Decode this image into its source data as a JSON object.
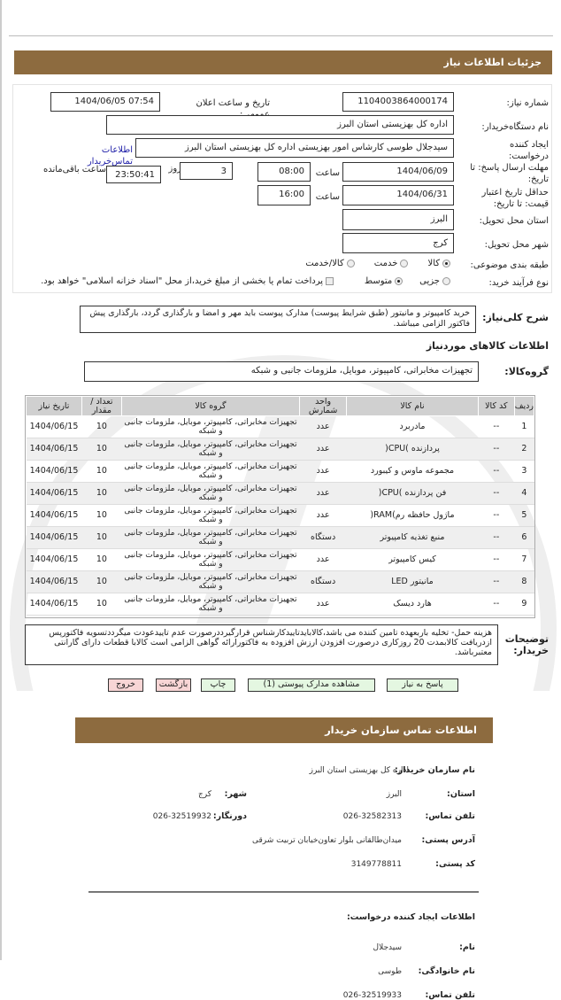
{
  "header": {
    "title": "جزئیات اطلاعات نیاز"
  },
  "form": {
    "need_number_label": "شماره نیاز:",
    "need_number": "1104003864000174",
    "announce_label": "تاریخ و ساعت اعلان عمومی:",
    "announce_value": "1404/06/05 07:54",
    "buyer_org_label": "نام دستگاه‌خریدار:",
    "buyer_org": "اداره کل بهزیستی استان البرز",
    "creator_label": "ایجاد کننده درخواست:",
    "creator": "سیدجلال طوسی کارشاس امور بهزیستی اداره کل بهزیستی استان البرز",
    "contact_link": "اطلاعات تماس‌خریدار",
    "deadline_label": "مهلت ارسال پاسخ: تا تاریخ:",
    "deadline_date": "1404/06/09",
    "time_label": "ساعت",
    "deadline_time": "08:00",
    "days_value": "3",
    "days_label": "روز",
    "remaining_time": "23:50:41",
    "remaining_label": "ساعت باقی‌مانده",
    "validity_label": "حداقل تاریخ اعتبار قیمت: تا تاریخ:",
    "validity_date": "1404/06/31",
    "validity_time": "16:00",
    "province_label": "استان محل تحویل:",
    "province": "البرز",
    "city_label": "شهر محل تحویل:",
    "city": "کرج",
    "category_label": "طبقه بندی موضوعی:",
    "category_options": [
      "کالا",
      "خدمت",
      "کالا/خدمت"
    ],
    "category_selected": "کالا",
    "process_label": "نوع فرآیند خرید:",
    "process_options": [
      "جزیی",
      "متوسط"
    ],
    "process_selected": "متوسط",
    "treasury_note": "پرداخت تمام یا بخشی از مبلغ خرید،از محل \"اسناد خزانه اسلامی\" خواهد بود.",
    "treasury_checked": false
  },
  "description": {
    "label": "شرح کلی‌نیاز:",
    "text": "خرید کامپیوتر و مانیتور (طبق شرایط پیوست) مدارک پیوست باید مهر و امضا و بارگذاری گردد، بارگذاری پیش فاکتور الزامی میباشد."
  },
  "goods": {
    "title": "اطلاعات کالاهای موردنیاز",
    "group_label": "گروه‌کالا:",
    "group": "تجهیزات مخابراتی، کامپیوتر، موبایل، ملزومات جانبی و شبکه"
  },
  "table": {
    "headers": [
      "ردیف",
      "کد کالا",
      "نام کالا",
      "واحد شمارش",
      "گروه کالا",
      "تعداد / مقدار",
      "تاریخ نیاز"
    ],
    "rows": [
      [
        "1",
        "--",
        "مادربرد",
        "عدد",
        "تجهیزات مخابراتی، کامپیوتر، موبایل، ملزومات جانبی و شبکه",
        "10",
        "1404/06/15"
      ],
      [
        "2",
        "--",
        "پردازنده )CPU(",
        "عدد",
        "تجهیزات مخابراتی، کامپیوتر، موبایل، ملزومات جانبی و شبکه",
        "10",
        "1404/06/15"
      ],
      [
        "3",
        "--",
        "مجموعه ماوس و کیبورد",
        "عدد",
        "تجهیزات مخابراتی، کامپیوتر، موبایل، ملزومات جانبی و شبکه",
        "10",
        "1404/06/15"
      ],
      [
        "4",
        "--",
        "فن پردازنده )CPU(",
        "عدد",
        "تجهیزات مخابراتی، کامپیوتر، موبایل، ملزومات جانبی و شبکه",
        "10",
        "1404/06/15"
      ],
      [
        "5",
        "--",
        "ماژول حافظه رم)RAM(",
        "عدد",
        "تجهیزات مخابراتی، کامپیوتر، موبایل، ملزومات جانبی و شبکه",
        "10",
        "1404/06/15"
      ],
      [
        "6",
        "--",
        "منبع تغذیه کامپیوتر",
        "دستگاه",
        "تجهیزات مخابراتی، کامپیوتر، موبایل، ملزومات جانبی و شبکه",
        "10",
        "1404/06/15"
      ],
      [
        "7",
        "--",
        "کیس کامپیوتر",
        "عدد",
        "تجهیزات مخابراتی، کامپیوتر، موبایل، ملزومات جانبی و شبکه",
        "10",
        "1404/06/15"
      ],
      [
        "8",
        "--",
        "مانیتور LED",
        "دستگاه",
        "تجهیزات مخابراتی، کامپیوتر، موبایل، ملزومات جانبی و شبکه",
        "10",
        "1404/06/15"
      ],
      [
        "9",
        "--",
        "هارد دیسک",
        "عدد",
        "تجهیزات مخابراتی، کامپیوتر، موبایل، ملزومات جانبی و شبکه",
        "10",
        "1404/06/15"
      ]
    ]
  },
  "notes": {
    "label": "توضیحات خریدار:",
    "text": "هزینه حمل- تخلیه باربعهده تامین کننده می باشد،کالاباید‌تاییدکارشناس قرارگیرددرصورت عدم تاییدعودت میگرددتسویه فاکتورپس ازدریافت کالابمدت 20 روزکاری درصورت افزودن ارزش افزوده به فاکتورارائه گواهی الزامی است کالابا قطعات دارای گارانتی معتبرباشد."
  },
  "buttons": {
    "reply": "پاسخ به نیاز",
    "attachments": "مشاهده مدارک پیوستی (1)",
    "print": "چاپ",
    "back": "بازگشت",
    "exit": "خروج"
  },
  "contact": {
    "title": "اطلاعات تماس سازمان خریدار",
    "org_label": "نام سازمان خریدار:",
    "org": "اداره کل بهزیستی استان البرز",
    "province_label": "استان:",
    "province": "البرز",
    "city_label": "شهر:",
    "city": "کرج",
    "phone_label": "تلفن تماس:",
    "phone": "026-32582313",
    "fax_label": "دورنگار:",
    "fax": "026-32519932",
    "address_label": "آدرس پستی:",
    "address": "میدان‌طالقانی بلوار تعاون‌خیابان تربیت شرقی",
    "postal_label": "کد پستی:",
    "postal": "3149778811",
    "creator_title": "اطلاعات ایجاد کننده درخواست:",
    "name_label": "نام:",
    "name": "سیدجلال",
    "family_label": "نام خانوادگی:",
    "family": "طوسی",
    "creator_phone_label": "تلفن تماس:",
    "creator_phone": "026-32519933"
  },
  "colors": {
    "header_bg": "#8d6b3f",
    "button_green": "#e4f7e1",
    "button_pink": "#f8d5d5",
    "link": "#1a1aa6"
  }
}
